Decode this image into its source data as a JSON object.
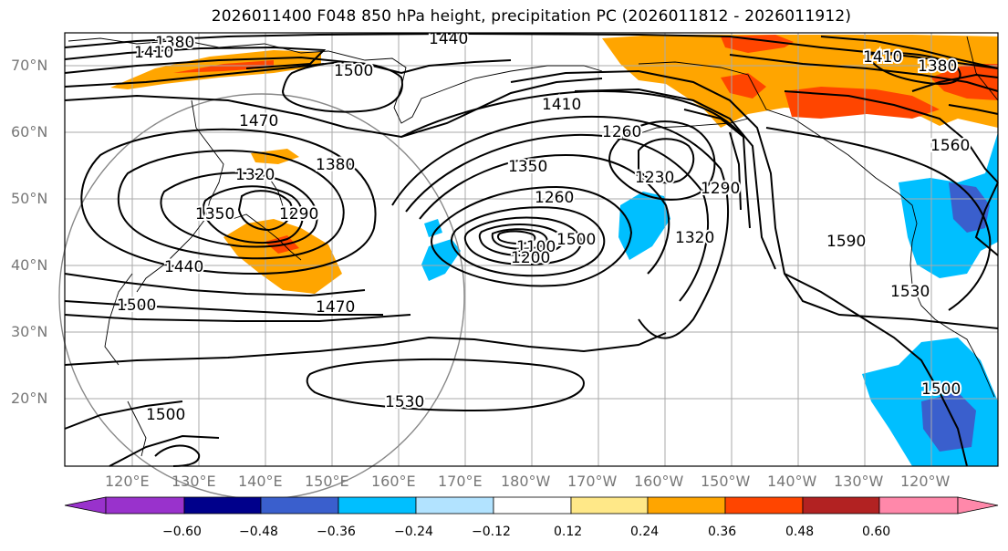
{
  "title": "2026011400 F048 850 hPa height, precipitation PC (2026011812 - 2026011912)",
  "lat_labels": [
    "70°N",
    "60°N",
    "50°N",
    "40°N",
    "30°N",
    "20°N"
  ],
  "lon_labels": [
    "120°E",
    "130°E",
    "140°E",
    "150°E",
    "160°E",
    "170°E",
    "180°W",
    "170°W",
    "160°W",
    "150°W",
    "140°W",
    "130°W",
    "120°W"
  ],
  "contour_labels": [
    "1380",
    "1410",
    "1440",
    "1500",
    "1470",
    "1380",
    "1320",
    "1290",
    "1350",
    "1410",
    "1260",
    "1350",
    "1260",
    "1230",
    "1100",
    "1200",
    "1290",
    "1320",
    "1590",
    "1530",
    "1560",
    "1410",
    "1380",
    "1440",
    "1500",
    "1470",
    "1500",
    "1530",
    "1500",
    "1500"
  ],
  "colorbar": {
    "ticks": [
      "−0.60",
      "−0.48",
      "−0.36",
      "−0.24",
      "−0.12",
      "0.12",
      "0.24",
      "0.36",
      "0.48",
      "0.60"
    ],
    "colors": [
      "#9932cc",
      "#00008b",
      "#3a5fcd",
      "#00bfff",
      "#b2e3ff",
      "#ffffff",
      "#ffe888",
      "#ffa500",
      "#ff4500",
      "#b22222",
      "#ff88aa"
    ]
  }
}
